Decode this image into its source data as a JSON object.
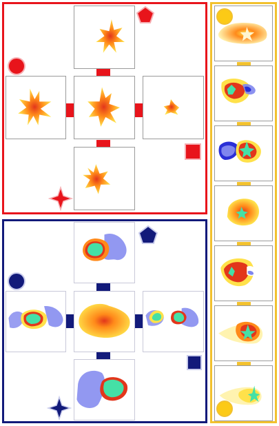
{
  "colors": {
    "red": "#e8141b",
    "red_glow": "#f6b0b4",
    "navy": "#121a7a",
    "navy_glow": "#c9ccec",
    "gold": "#f2c12e",
    "gold_fill": "#fcca16",
    "heat_yellow": "#ffe14a",
    "heat_orange": "#ff8a1a",
    "heat_red": "#e2361b",
    "cool_blue": "#7f86ee",
    "mint": "#45e0a6"
  },
  "panels": {
    "red_group": {
      "markers": [
        "pentagon",
        "circle",
        "square",
        "star"
      ]
    },
    "navy_group": {
      "markers": [
        "pentagon",
        "circle",
        "square",
        "star"
      ]
    },
    "gold_strip": {
      "markers": [
        "circle-top",
        "circle-bottom"
      ],
      "tile_count": 7
    }
  }
}
